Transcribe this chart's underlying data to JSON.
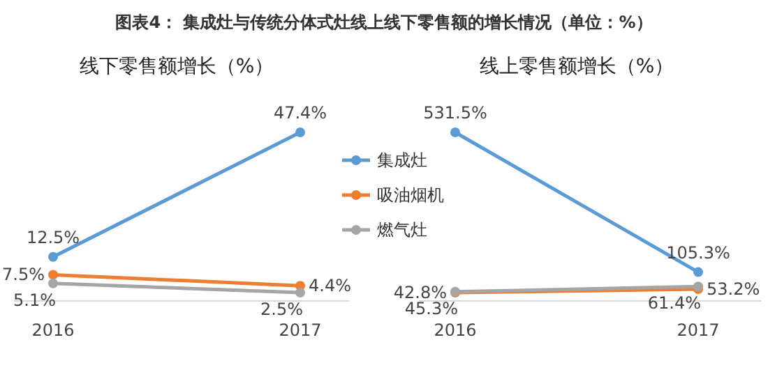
{
  "chart_data": [
    {
      "type": "line",
      "title": "图表4： 集成灶与传统分体式灶线上线下零售额的增长情况（单位：%）",
      "subtitle": "线下零售额增长（%）",
      "categories": [
        "2016",
        "2017"
      ],
      "marker": "circle",
      "legend": "right",
      "series": [
        {
          "name": "集成灶",
          "color": "#5b9bd5",
          "values": [
            12.5,
            47.4
          ],
          "value_labels": [
            "12.5%",
            "47.4%"
          ]
        },
        {
          "name": "吸油烟机",
          "color": "#ed7d31",
          "values": [
            7.5,
            4.4
          ],
          "value_labels": [
            "7.5%",
            "4.4%"
          ]
        },
        {
          "name": "燃气灶",
          "color": "#a5a5a5",
          "values": [
            5.1,
            2.5
          ],
          "value_labels": [
            "5.1%",
            "2.5%"
          ]
        }
      ]
    },
    {
      "type": "line",
      "subtitle": "线上零售额增长（%）",
      "categories": [
        "2016",
        "2017"
      ],
      "marker": "circle",
      "series": [
        {
          "color": "#5b9bd5",
          "values": [
            531.5,
            105.3
          ],
          "value_labels": [
            "531.5%",
            "105.3%"
          ]
        },
        {
          "color": "#ed7d31",
          "values": [
            42.8,
            53.2
          ],
          "value_labels": [
            "42.8%",
            "53.2%"
          ]
        },
        {
          "color": "#a5a5a5",
          "values": [
            45.3,
            61.4
          ],
          "value_labels": [
            "45.3%",
            "61.4%"
          ]
        }
      ]
    }
  ]
}
